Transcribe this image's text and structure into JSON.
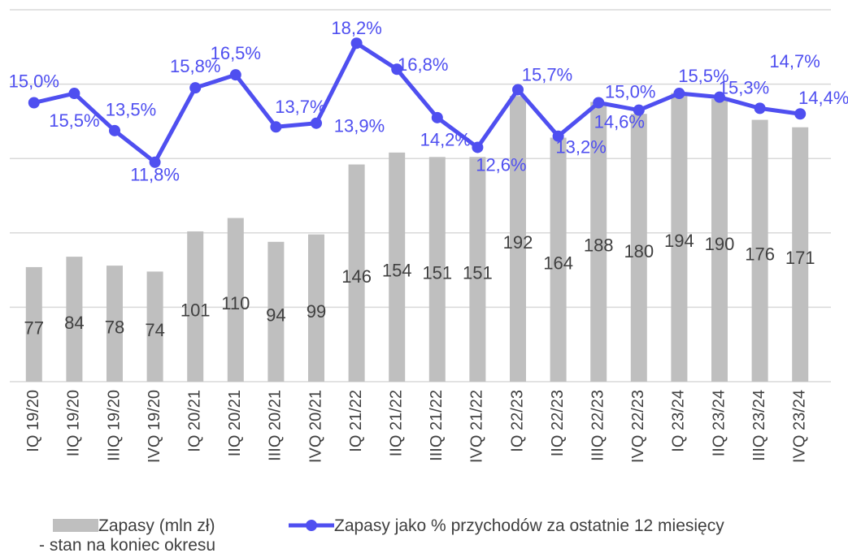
{
  "chart_data": {
    "type": "bar_line",
    "categories": [
      "IQ 19/20",
      "IIQ 19/20",
      "IIIQ 19/20",
      "IVQ 19/20",
      "IQ 20/21",
      "IIQ 20/21",
      "IIIQ 20/21",
      "IVQ 20/21",
      "IQ 21/22",
      "IIQ 21/22",
      "IIIQ 21/22",
      "IVQ 21/22",
      "IQ 22/23",
      "IIQ 22/23",
      "IIIQ 22/23",
      "IVQ 22/23",
      "IQ 23/24",
      "IIQ 23/24",
      "IIIQ 23/24",
      "IVQ 23/24"
    ],
    "series": [
      {
        "name": "Zapasy (mln zł)\n- stan na koniec okresu",
        "type": "bar",
        "color": "#bfbfbf",
        "values": [
          77,
          84,
          78,
          74,
          101,
          110,
          94,
          99,
          146,
          154,
          151,
          151,
          192,
          164,
          188,
          180,
          194,
          190,
          176,
          171
        ]
      },
      {
        "name": "Zapasy jako % przychodów za ostatnie 12 miesięcy",
        "type": "line",
        "axis": "y2",
        "color": "#4f4ff0",
        "values": [
          15.0,
          15.5,
          13.5,
          11.8,
          15.8,
          16.5,
          13.7,
          13.9,
          18.2,
          16.8,
          14.2,
          12.6,
          15.7,
          13.2,
          15.0,
          14.6,
          15.5,
          15.3,
          14.7,
          14.4
        ],
        "value_labels": [
          "15,0%",
          "15,5%",
          "13,5%",
          "11,8%",
          "15,8%",
          "16,5%",
          "13,7%",
          "13,9%",
          "18,2%",
          "16,8%",
          "14,2%",
          "12,6%",
          "15,7%",
          "13,2%",
          "15,0%",
          "14,6%",
          "15,5%",
          "15,3%",
          "14,7%",
          "14,4%"
        ]
      }
    ],
    "ylim": [
      0,
      250
    ],
    "yticks": [
      0,
      50,
      100,
      150,
      200,
      250
    ],
    "y2lim": [
      0,
      20
    ],
    "grid": true,
    "legend": "bottom"
  }
}
